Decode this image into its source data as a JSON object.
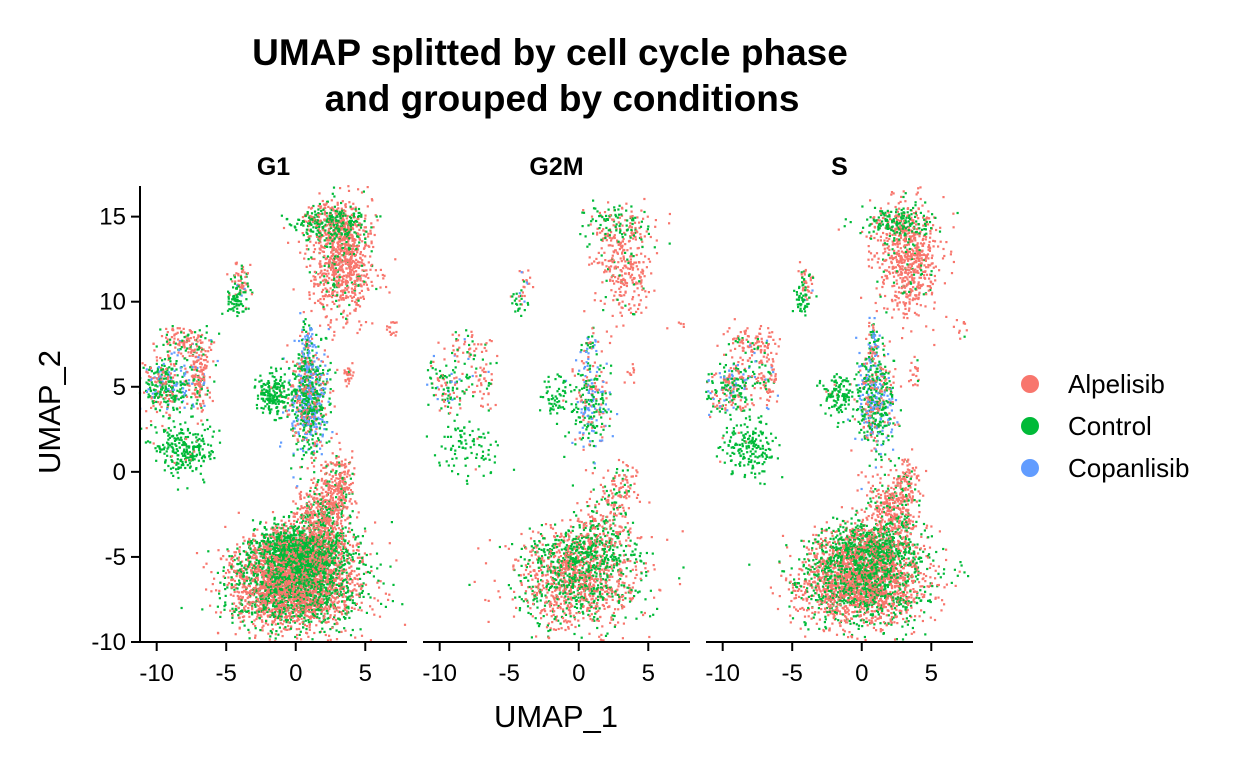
{
  "chart_data": {
    "type": "scatter",
    "title": [
      "UMAP splitted by cell cycle phase",
      "and grouped by conditions"
    ],
    "xlabel": "UMAP_1",
    "ylabel": "UMAP_2",
    "xlim": [
      -11.2,
      8
    ],
    "ylim": [
      -10,
      16.8
    ],
    "x_ticks": [
      -10,
      -5,
      0,
      5
    ],
    "x_tick_labels": [
      "-10",
      "-5",
      "0",
      "5"
    ],
    "y_ticks": [
      -10,
      -5,
      0,
      5,
      10,
      15
    ],
    "y_tick_labels": [
      "-10",
      "-5",
      "0",
      "5",
      "10",
      "15"
    ],
    "grid": false,
    "legend_position": "right",
    "series": [
      {
        "name": "Alpelisib",
        "color": "#F8766D"
      },
      {
        "name": "Control",
        "color": "#00BA38"
      },
      {
        "name": "Copanlisib",
        "color": "#619CFF"
      }
    ],
    "facets": [
      {
        "name": "G1",
        "density": 1.0
      },
      {
        "name": "G2M",
        "density": 0.35
      },
      {
        "name": "S",
        "density": 0.7
      }
    ],
    "clusters": [
      {
        "cx": 0.0,
        "cy": -6.6,
        "sx": 2.3,
        "sy": 1.3,
        "weight": 2.2,
        "mix": [
          0.62,
          0.38,
          0.0
        ]
      },
      {
        "cx": 0.4,
        "cy": -4.6,
        "sx": 1.8,
        "sy": 0.8,
        "weight": 0.9,
        "mix": [
          0.35,
          0.65,
          0.0
        ]
      },
      {
        "cx": 2.0,
        "cy": -2.4,
        "sx": 1.0,
        "sy": 1.1,
        "weight": 0.35,
        "mix": [
          0.75,
          0.25,
          0.0
        ]
      },
      {
        "cx": 3.2,
        "cy": -0.8,
        "sx": 0.5,
        "sy": 0.8,
        "weight": 0.12,
        "mix": [
          0.8,
          0.2,
          0.0
        ]
      },
      {
        "cx": 0.9,
        "cy": 4.2,
        "sx": 0.7,
        "sy": 1.5,
        "weight": 0.55,
        "mix": [
          0.25,
          0.45,
          0.3
        ]
      },
      {
        "cx": 0.8,
        "cy": 7.4,
        "sx": 0.25,
        "sy": 0.9,
        "weight": 0.06,
        "mix": [
          0.2,
          0.3,
          0.5
        ]
      },
      {
        "cx": -1.6,
        "cy": 4.5,
        "sx": 0.6,
        "sy": 0.6,
        "weight": 0.12,
        "mix": [
          0.02,
          0.98,
          0.0
        ]
      },
      {
        "cx": 3.3,
        "cy": 12.5,
        "sx": 1.1,
        "sy": 1.7,
        "weight": 0.65,
        "mix": [
          0.88,
          0.12,
          0.0
        ]
      },
      {
        "cx": 2.6,
        "cy": 14.6,
        "sx": 1.3,
        "sy": 0.5,
        "weight": 0.22,
        "mix": [
          0.3,
          0.7,
          0.0
        ]
      },
      {
        "cx": -4.0,
        "cy": 11.1,
        "sx": 0.35,
        "sy": 0.6,
        "weight": 0.05,
        "mix": [
          0.6,
          0.3,
          0.1
        ]
      },
      {
        "cx": -4.3,
        "cy": 10.0,
        "sx": 0.35,
        "sy": 0.4,
        "weight": 0.04,
        "mix": [
          0.05,
          0.95,
          0.0
        ]
      },
      {
        "cx": -9.3,
        "cy": 5.0,
        "sx": 0.9,
        "sy": 0.8,
        "weight": 0.25,
        "mix": [
          0.35,
          0.45,
          0.2
        ]
      },
      {
        "cx": -8.0,
        "cy": 7.6,
        "sx": 0.9,
        "sy": 0.5,
        "weight": 0.1,
        "mix": [
          0.7,
          0.25,
          0.05
        ]
      },
      {
        "cx": -6.9,
        "cy": 5.6,
        "sx": 0.45,
        "sy": 1.0,
        "weight": 0.1,
        "mix": [
          0.7,
          0.2,
          0.1
        ]
      },
      {
        "cx": -8.1,
        "cy": 1.3,
        "sx": 1.1,
        "sy": 0.8,
        "weight": 0.18,
        "mix": [
          0.03,
          0.97,
          0.0
        ]
      },
      {
        "cx": 3.8,
        "cy": 5.8,
        "sx": 0.2,
        "sy": 0.4,
        "weight": 0.02,
        "mix": [
          0.95,
          0.05,
          0.0
        ]
      },
      {
        "cx": 7.0,
        "cy": 8.5,
        "sx": 0.3,
        "sy": 0.3,
        "weight": 0.01,
        "mix": [
          0.9,
          0.1,
          0.0
        ]
      }
    ]
  }
}
